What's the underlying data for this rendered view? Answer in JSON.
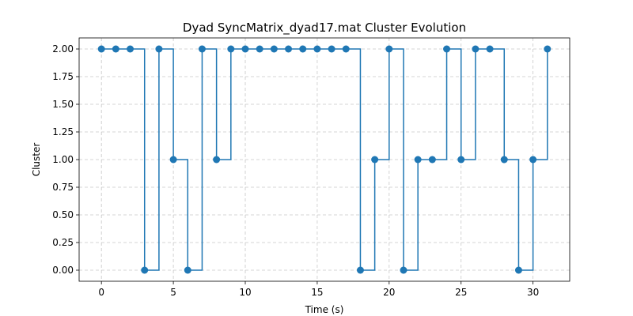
{
  "chart_data": {
    "type": "line",
    "step": "post",
    "title": "Dyad SyncMatrix_dyad17.mat Cluster Evolution",
    "xlabel": "Time (s)",
    "ylabel": "Cluster",
    "xlim": [
      -1.55,
      32.55
    ],
    "ylim": [
      -0.1,
      2.1
    ],
    "xticks": [
      0,
      5,
      10,
      15,
      20,
      25,
      30
    ],
    "xtick_labels": [
      "0",
      "5",
      "10",
      "15",
      "20",
      "25",
      "30"
    ],
    "yticks": [
      0.0,
      0.25,
      0.5,
      0.75,
      1.0,
      1.25,
      1.5,
      1.75,
      2.0
    ],
    "ytick_labels": [
      "0.00",
      "0.25",
      "0.50",
      "0.75",
      "1.00",
      "1.25",
      "1.50",
      "1.75",
      "2.00"
    ],
    "grid": true,
    "color": "#1f77b4",
    "series": [
      {
        "x": [
          0,
          1,
          2,
          3,
          4,
          5,
          6,
          7,
          8,
          9,
          10,
          11,
          12,
          13,
          14,
          15,
          16,
          17,
          18,
          19,
          20,
          21,
          22,
          23,
          24,
          25,
          26,
          27,
          28,
          29,
          30,
          31
        ],
        "values": [
          2,
          2,
          2,
          0,
          2,
          1,
          0,
          2,
          1,
          2,
          2,
          2,
          2,
          2,
          2,
          2,
          2,
          2,
          0,
          1,
          2,
          0,
          1,
          1,
          2,
          1,
          2,
          2,
          1,
          0,
          1,
          2
        ]
      }
    ]
  }
}
